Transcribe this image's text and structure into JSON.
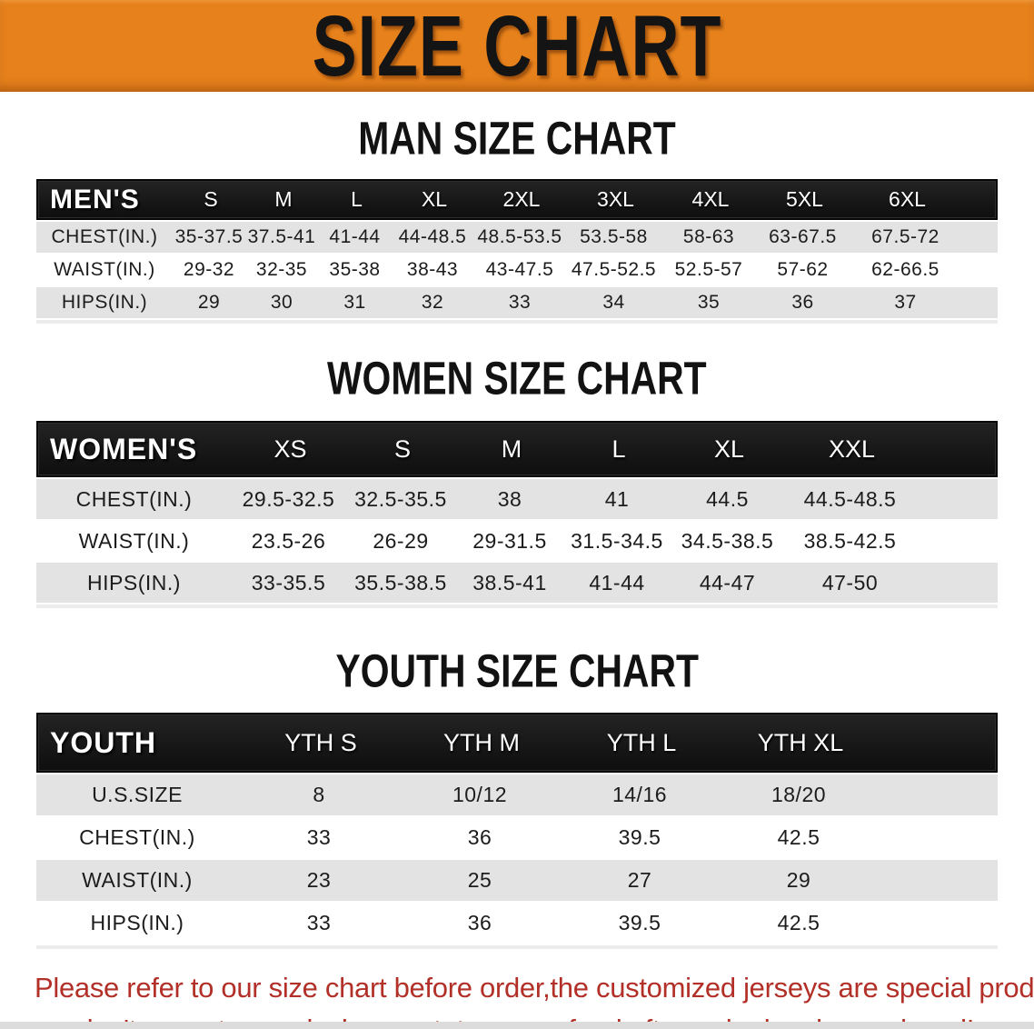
{
  "banner": {
    "title": "SIZE CHART",
    "bg_color": "#e6811b",
    "text_color": "#141414"
  },
  "sections": {
    "men": {
      "title": "MAN SIZE CHART",
      "group_label": "MEN'S",
      "columns": [
        "S",
        "M",
        "L",
        "XL",
        "2XL",
        "3XL",
        "4XL",
        "5XL",
        "6XL"
      ],
      "rows": [
        {
          "label": "CHEST(IN.)",
          "values": [
            "35-37.5",
            "37.5-41",
            "41-44",
            "44-48.5",
            "48.5-53.5",
            "53.5-58",
            "58-63",
            "63-67.5",
            "67.5-72"
          ]
        },
        {
          "label": "WAIST(IN.)",
          "values": [
            "29-32",
            "32-35",
            "35-38",
            "38-43",
            "43-47.5",
            "47.5-52.5",
            "52.5-57",
            "57-62",
            "62-66.5"
          ]
        },
        {
          "label": "HIPS(IN.)",
          "values": [
            "29",
            "30",
            "31",
            "32",
            "33",
            "34",
            "35",
            "36",
            "37"
          ]
        }
      ]
    },
    "women": {
      "title": "WOMEN SIZE CHART",
      "group_label": "WOMEN'S",
      "columns": [
        "XS",
        "S",
        "M",
        "L",
        "XL",
        "XXL"
      ],
      "rows": [
        {
          "label": "CHEST(IN.)",
          "values": [
            "29.5-32.5",
            "32.5-35.5",
            "38",
            "41",
            "44.5",
            "44.5-48.5"
          ]
        },
        {
          "label": "WAIST(IN.)",
          "values": [
            "23.5-26",
            "26-29",
            "29-31.5",
            "31.5-34.5",
            "34.5-38.5",
            "38.5-42.5"
          ]
        },
        {
          "label": "HIPS(IN.)",
          "values": [
            "33-35.5",
            "35.5-38.5",
            "38.5-41",
            "41-44",
            "44-47",
            "47-50"
          ]
        }
      ]
    },
    "youth": {
      "title": "YOUTH SIZE CHART",
      "group_label": "YOUTH",
      "columns": [
        "YTH S",
        "YTH M",
        "YTH L",
        "YTH XL"
      ],
      "rows": [
        {
          "label": "U.S.SIZE",
          "values": [
            "8",
            "10/12",
            "14/16",
            "18/20"
          ]
        },
        {
          "label": "CHEST(IN.)",
          "values": [
            "33",
            "36",
            "39.5",
            "42.5"
          ]
        },
        {
          "label": "WAIST(IN.)",
          "values": [
            "23",
            "25",
            "27",
            "29"
          ]
        },
        {
          "label": "HIPS(IN.)",
          "values": [
            "33",
            "36",
            "39.5",
            "42.5"
          ]
        }
      ]
    }
  },
  "disclaimer": {
    "line1": "Please refer to our size chart before order,the customized jerseys are special products,",
    "line2": "we don't accept cancel, change, teturn or refund after order has been placed!",
    "text_color": "#b23028"
  },
  "colors": {
    "banner_orange": "#e6811b",
    "table_header_bg": "#181818",
    "table_header_text": "#ffffff",
    "stripe_row_bg": "#e3e3e3",
    "body_text": "#1c1c1c"
  }
}
